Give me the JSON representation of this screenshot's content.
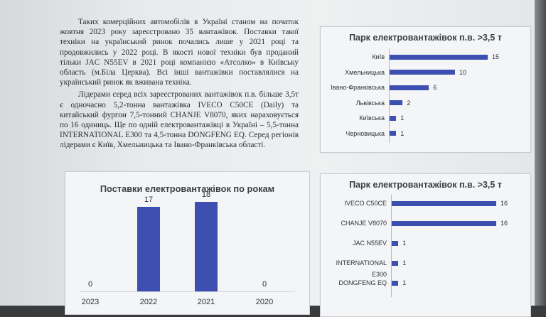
{
  "paragraphs": [
    "Таких комерційних автомобілів в Україні станом на початок жовтня 2023 року зареєстровано 35 вантажівок. Поставки такої техніки на український ринок почались лише у 2021 році та продовжились у 2022 році. В якості нової техніки був проданий тільки JAC N55EV в 2021 році компанією «Атсолко» в Київську область (м.Біла Церква). Всі інші вантажівки поставлялися на український ринок як вживана техніка.",
    "Лідерами серед всіх зареєстрованих вантажівок п.в. більше 3,5т є одночасно 5,2-тонна вантажівка IVECO C50CE (Daily) та китайський фургон 7,5-тонний CHANJE V8070, яких нараховується по 16 одиниць. Ще по одній електровантажівці в Україні – 5,5-тонна INTERNATIONAL E300 та 4,5-тонна DONGFENG EQ. Серед регіонів лідерами є Київ, Хмельницька та Івано-Франківська області."
  ],
  "charts": {
    "regions": {
      "chart_data": {
        "type": "bar",
        "orientation": "horizontal",
        "title": "Парк електровантажівок п.в. >3,5 т",
        "categories": [
          "Київ",
          "Хмельницька",
          "Івано-Франківська",
          "Львівська",
          "Київська",
          "Черновицька"
        ],
        "values": [
          15,
          10,
          6,
          2,
          1,
          1
        ],
        "bar_color": "#3e4fb2",
        "xlim": [
          0,
          15
        ]
      }
    },
    "models": {
      "chart_data": {
        "type": "bar",
        "orientation": "horizontal",
        "title": "Парк електровантажівок п.в. >3,5 т",
        "categories": [
          "IVECO C50CE",
          "CHANJE V8070",
          "JAC N55EV",
          "INTERNATIONAL E300",
          "DONGFENG EQ"
        ],
        "values": [
          16,
          16,
          1,
          1,
          1
        ],
        "bar_color": "#3e4fb2",
        "xlim": [
          0,
          16
        ]
      }
    },
    "years": {
      "chart_data": {
        "type": "bar",
        "orientation": "vertical",
        "title": "Поставки електровантажівок по рокам",
        "categories": [
          "2023",
          "2022",
          "2021",
          "2020"
        ],
        "values": [
          0,
          17,
          18,
          0
        ],
        "bar_color": "#3e4fb2",
        "ylim": [
          0,
          18
        ]
      }
    }
  }
}
